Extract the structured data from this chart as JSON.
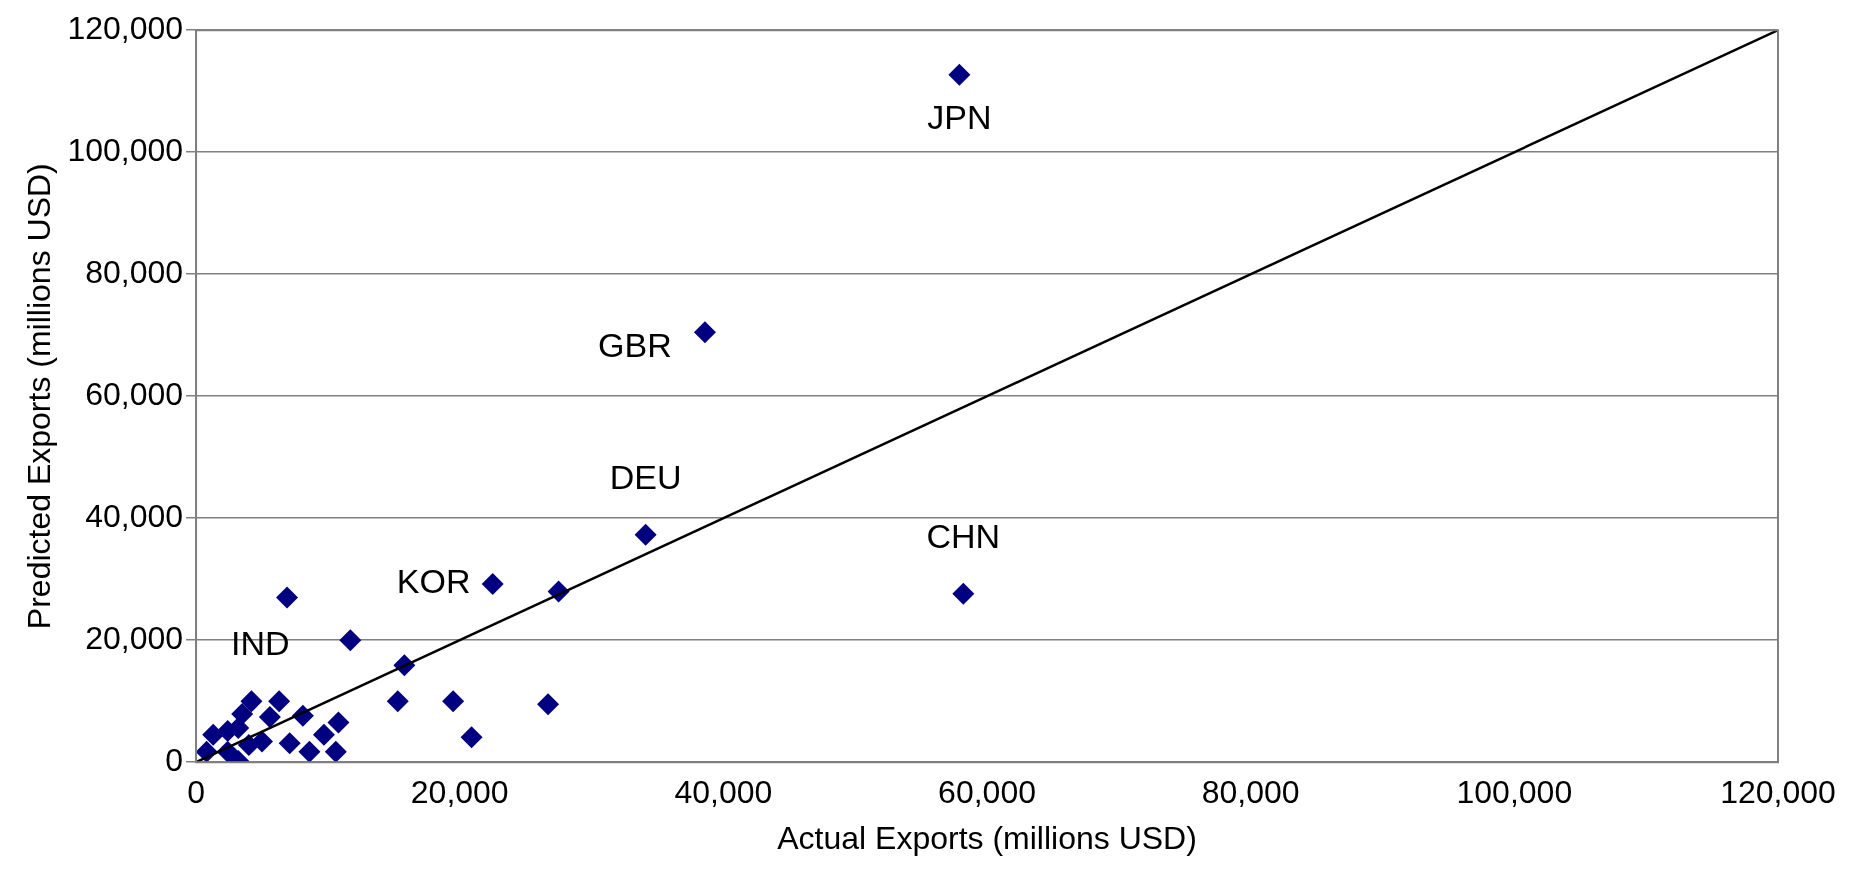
{
  "chart_data": {
    "type": "scatter",
    "xlabel": "Actual Exports (millions USD)",
    "ylabel": "Predicted Exports (millions USD)",
    "xlim": [
      0,
      120000
    ],
    "ylim": [
      0,
      120000
    ],
    "xticks": [
      {
        "value": 0,
        "label": "0"
      },
      {
        "value": 20000,
        "label": "20,000"
      },
      {
        "value": 40000,
        "label": "40,000"
      },
      {
        "value": 60000,
        "label": "60,000"
      },
      {
        "value": 80000,
        "label": "80,000"
      },
      {
        "value": 100000,
        "label": "100,000"
      },
      {
        "value": 120000,
        "label": "120,000"
      }
    ],
    "yticks": [
      {
        "value": 0,
        "label": "0"
      },
      {
        "value": 20000,
        "label": "20,000"
      },
      {
        "value": 40000,
        "label": "40,000"
      },
      {
        "value": 60000,
        "label": "60,000"
      },
      {
        "value": 80000,
        "label": "80,000"
      },
      {
        "value": 100000,
        "label": "100,000"
      },
      {
        "value": 120000,
        "label": "120,000"
      }
    ],
    "grid": "y",
    "legend": false,
    "marker": "diamond",
    "series": [
      {
        "type": "scatter",
        "color": "#000080",
        "x": [
          57900,
          38600,
          34100,
          27500,
          58200,
          11700,
          22500,
          26700,
          20900,
          19500,
          15300,
          15800,
          6900,
          4200,
          6300,
          5600,
          8100,
          10800,
          9700,
          7100,
          8600,
          10600,
          5000,
          3500,
          3200,
          3200,
          2400,
          4000,
          2400,
          1300,
          800
        ],
        "values": [
          112700,
          70500,
          37300,
          28000,
          27600,
          20000,
          29200,
          9500,
          4100,
          10000,
          10000,
          15900,
          27000,
          10000,
          10000,
          7400,
          7600,
          6500,
          4500,
          3100,
          1700,
          1700,
          3400,
          7900,
          5600,
          200,
          1700,
          2800,
          5100,
          4500,
          1700
        ]
      },
      {
        "type": "line",
        "color": "#000000",
        "line_style": "solid",
        "marker": "none",
        "x": [
          0,
          120000
        ],
        "values": [
          0,
          120000
        ]
      }
    ],
    "annotations": [
      {
        "text": "JPN",
        "x": 57900,
        "y": 112700
      },
      {
        "text": "GBR",
        "x": 38600,
        "y": 70500
      },
      {
        "text": "DEU",
        "x": 34100,
        "y": 37300
      },
      {
        "text": "KOR",
        "x": 27500,
        "y": 28000
      },
      {
        "text": "CHN",
        "x": 58200,
        "y": 27600
      },
      {
        "text": "IND",
        "x": 11700,
        "y": 20000
      }
    ]
  }
}
